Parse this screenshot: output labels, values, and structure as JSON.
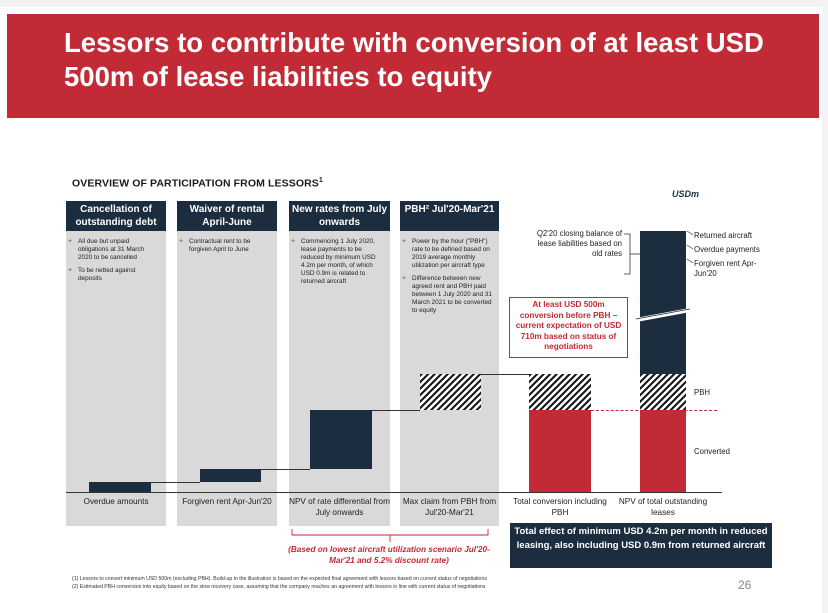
{
  "header": {
    "title": "Lessors to contribute with conversion of at least USD 500m of lease liabilities to equity"
  },
  "section": {
    "title": "OVERVIEW OF PARTICIPATION FROM LESSORS",
    "title_sup": "1",
    "unit": "USDm"
  },
  "columns": [
    {
      "heading": "Cancellation of outstanding debt",
      "bullets": [
        "All due but unpaid obligations at 31 March 2020 to be cancelled",
        "To be netted against deposits"
      ],
      "xlabel": "Overdue amounts"
    },
    {
      "heading": "Waiver of rental April-June",
      "bullets": [
        "Contractual rent to be forgiven April to June"
      ],
      "xlabel": "Forgiven rent Apr-Jun'20"
    },
    {
      "heading": "New rates from July onwards",
      "bullets": [
        "Commencing 1 July 2020, lease payments to be reduced by minimum USD 4.2m per month, of which USD 0.9m is related to returned aircraft"
      ],
      "xlabel": "NPV of rate differential from July onwards"
    },
    {
      "heading": "PBH² Jul'20-Mar'21",
      "bullets": [
        "Power by the hour (\"PBH\") rate to be defined based on 2019 average monthly utilization per aircraft type",
        "Difference between new agreed rent and PBH paid between 1 July 2020 and 31 March 2021 to be converted to equity"
      ],
      "xlabel": "Max claim from PBH from Jul'20-Mar'21"
    }
  ],
  "extra_xlabels": [
    "Total conversion including PBH",
    "NPV of total outstanding leases"
  ],
  "annotations": {
    "q2_note": "Q2'20 closing balance of lease liabilities based on old rates",
    "red_box": "At least USD 500m conversion before PBH – current expectation of USD 710m based on status of negotiations",
    "right_labels": [
      "Returned aircraft",
      "Overdue payments",
      "Forgiven rent Apr-Jun'20",
      "PBH",
      "Converted"
    ],
    "red_note": "(Based on lowest aircraft utilization scenario Jul'20-Mar'21 and 5.2% discount rate)",
    "bottom_box": "Total effect of minimum USD 4.2m per month in reduced leasing, also including USD 0.9m from returned aircraft"
  },
  "footnotes": [
    "(1)  Lessors to convert minimum USD 500m (excluding PBH). Build-up in the illustration is based on the expected final agreement with lessors based on current status of negotiations",
    "(2)  Estimated PBH conversion into equity based on the slow recovery case, assuming that the company reaches an agreement with lessors in line with current status of negotiations"
  ],
  "page_number": "26",
  "colors": {
    "brand_red": "#c22a35",
    "navy": "#1b2d3e",
    "grey": "#d9d9d9"
  }
}
